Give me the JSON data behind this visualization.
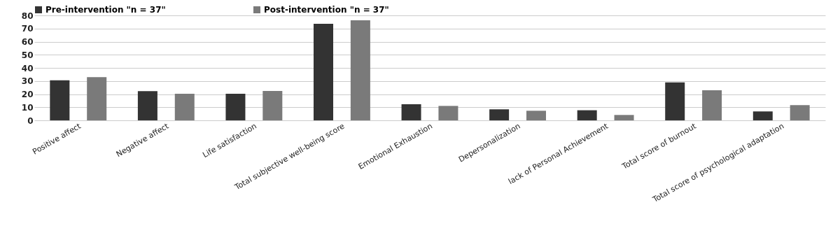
{
  "chart_data": {
    "type": "bar",
    "categories": [
      "Positive affect",
      "Negative affect",
      "Life satisfaction",
      "Total subjective well-being score",
      "Emotional Exhaustion",
      "Depersonalization",
      "lack of Personal Achievement",
      "Total score of burnout",
      "Total score of psychological adaptation"
    ],
    "series": [
      {
        "name": "Pre-intervention  \"n = 37\"",
        "color": "#333333",
        "values": [
          30.5,
          22.3,
          20.3,
          73.6,
          12.3,
          8.4,
          7.7,
          29.0,
          6.8
        ]
      },
      {
        "name": "Post-intervention  \"n = 37\"",
        "color": "#7a7a7a",
        "values": [
          33.0,
          20.3,
          22.4,
          76.3,
          11.0,
          7.3,
          4.1,
          23.0,
          11.6
        ]
      }
    ],
    "ylim": [
      0,
      80
    ],
    "yticks": [
      0,
      10,
      20,
      30,
      40,
      50,
      60,
      70,
      80
    ],
    "grid": "y",
    "legend": "top"
  }
}
